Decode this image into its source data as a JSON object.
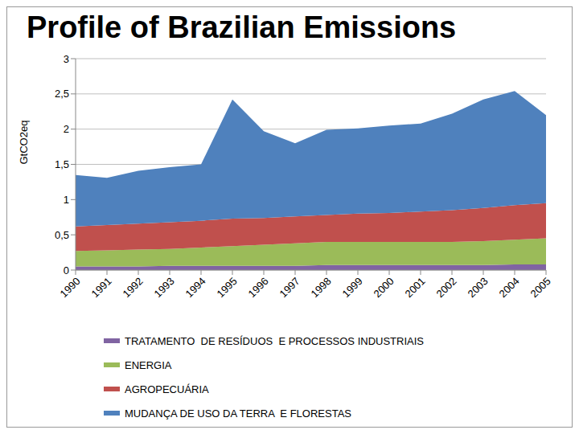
{
  "chart_data": {
    "type": "area",
    "title": "Profile of Brazilian Emissions",
    "y_label": "GtCO2eq",
    "stacked": true,
    "grid": true,
    "categories": [
      "1990",
      "1991",
      "1992",
      "1993",
      "1994",
      "1995",
      "1996",
      "1997",
      "1998",
      "1999",
      "2000",
      "2001",
      "2002",
      "2003",
      "2004",
      "2005"
    ],
    "ylim": [
      0,
      3
    ],
    "yticks": [
      0,
      {
        "value": 0.5,
        "label": "0,5"
      },
      1,
      {
        "value": 1.5,
        "label": "1,5"
      },
      2,
      {
        "value": 2.5,
        "label": "2,5"
      },
      3
    ],
    "series": [
      {
        "name": "TRATAMENTO  DE RESÍDUOS  E PROCESSOS INDUSTRIAIS",
        "color": "#8064a2",
        "values": [
          0.05,
          0.05,
          0.05,
          0.06,
          0.06,
          0.06,
          0.06,
          0.06,
          0.07,
          0.07,
          0.07,
          0.07,
          0.07,
          0.07,
          0.08,
          0.08
        ]
      },
      {
        "name": "ENERGIA",
        "color": "#9bbb59",
        "values": [
          0.22,
          0.23,
          0.24,
          0.24,
          0.26,
          0.28,
          0.3,
          0.32,
          0.33,
          0.33,
          0.33,
          0.33,
          0.33,
          0.34,
          0.35,
          0.37
        ]
      },
      {
        "name": "AGROPECUÁRIA",
        "color": "#c0504d",
        "values": [
          0.35,
          0.36,
          0.37,
          0.38,
          0.38,
          0.39,
          0.38,
          0.38,
          0.38,
          0.4,
          0.41,
          0.43,
          0.45,
          0.47,
          0.49,
          0.5
        ]
      },
      {
        "name": "MUDANÇA DE USO DA TERRA  E FLORESTAS",
        "color": "#4f81bd",
        "values": [
          0.73,
          0.67,
          0.75,
          0.78,
          0.8,
          1.69,
          1.23,
          1.04,
          1.21,
          1.21,
          1.24,
          1.25,
          1.37,
          1.54,
          1.62,
          1.25
        ]
      }
    ]
  }
}
